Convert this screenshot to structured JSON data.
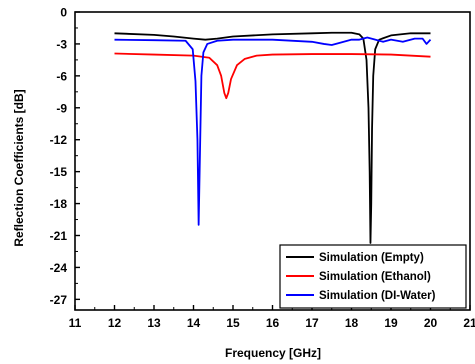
{
  "chart_data": {
    "type": "line",
    "xlabel": "Frequency [GHz]",
    "ylabel": "Reflection Coefficients [dB]",
    "xlim": [
      11,
      21
    ],
    "ylim": [
      -28,
      0
    ],
    "x_ticks": [
      11,
      12,
      13,
      14,
      15,
      16,
      17,
      18,
      19,
      20,
      21
    ],
    "y_ticks": [
      0,
      -3,
      -6,
      -9,
      -12,
      -15,
      -18,
      -21,
      -24,
      -27
    ],
    "grid": false,
    "legend_position": "bottom-right",
    "series": [
      {
        "name": "Simulation (Empty)",
        "color": "#000000",
        "x": [
          12,
          13,
          13.5,
          14,
          14.3,
          14.6,
          15,
          16,
          17,
          17.5,
          18,
          18.2,
          18.3,
          18.38,
          18.43,
          18.46,
          18.48,
          18.5,
          18.52,
          18.55,
          18.6,
          18.7,
          19,
          19.5,
          20
        ],
        "y": [
          -2.0,
          -2.15,
          -2.3,
          -2.5,
          -2.6,
          -2.5,
          -2.3,
          -2.1,
          -2.0,
          -1.95,
          -1.95,
          -2.1,
          -2.5,
          -4.5,
          -9.0,
          -15.0,
          -21.7,
          -18.0,
          -11.0,
          -6.0,
          -3.5,
          -2.6,
          -2.2,
          -2.0,
          -2.0
        ]
      },
      {
        "name": "Simulation (Ethanol)",
        "color": "#ff0000",
        "x": [
          12,
          13,
          14,
          14.4,
          14.6,
          14.7,
          14.78,
          14.83,
          14.88,
          14.95,
          15.1,
          15.3,
          15.6,
          16,
          17,
          18,
          19,
          20
        ],
        "y": [
          -3.9,
          -4.0,
          -4.1,
          -4.3,
          -5.0,
          -6.0,
          -7.6,
          -8.1,
          -7.6,
          -6.3,
          -5.0,
          -4.4,
          -4.1,
          -4.0,
          -3.95,
          -3.95,
          -4.0,
          -4.2
        ]
      },
      {
        "name": "Simulation (DI-Water)",
        "color": "#0000ff",
        "x": [
          12,
          13,
          13.8,
          13.98,
          14.05,
          14.1,
          14.13,
          14.16,
          14.2,
          14.25,
          14.35,
          14.6,
          15,
          16,
          17,
          17.3,
          17.5,
          17.7,
          18,
          18.2,
          18.4,
          18.6,
          18.8,
          19,
          19.3,
          19.6,
          19.8,
          19.9,
          20
        ],
        "y": [
          -2.6,
          -2.65,
          -2.7,
          -3.5,
          -6.5,
          -12.0,
          -20.0,
          -14.0,
          -6.0,
          -3.8,
          -3.0,
          -2.7,
          -2.6,
          -2.6,
          -2.8,
          -3.0,
          -3.1,
          -2.9,
          -2.6,
          -2.6,
          -2.4,
          -2.6,
          -2.8,
          -2.6,
          -2.8,
          -2.5,
          -2.5,
          -3.0,
          -2.6
        ]
      }
    ]
  }
}
